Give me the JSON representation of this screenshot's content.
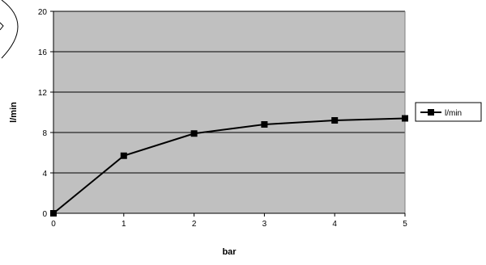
{
  "chart_data": {
    "type": "line",
    "title": "",
    "xlabel": "bar",
    "ylabel": "l/min",
    "x": [
      0,
      1,
      2,
      3,
      4,
      5
    ],
    "xlim": [
      0,
      5
    ],
    "ylim": [
      0,
      20
    ],
    "xticks": [
      "0",
      "1",
      "2",
      "3",
      "4",
      "5"
    ],
    "yticks": [
      "0",
      "4",
      "8",
      "12",
      "16",
      "20"
    ],
    "grid": true,
    "legend": "right",
    "colors": {
      "plot_bg": "#c0c0c0",
      "series": "#000000",
      "grid": "#000000"
    },
    "series": [
      {
        "name": "l/min",
        "values": [
          0,
          5.7,
          7.9,
          8.8,
          9.2,
          9.4
        ],
        "marker": "square"
      }
    ]
  }
}
